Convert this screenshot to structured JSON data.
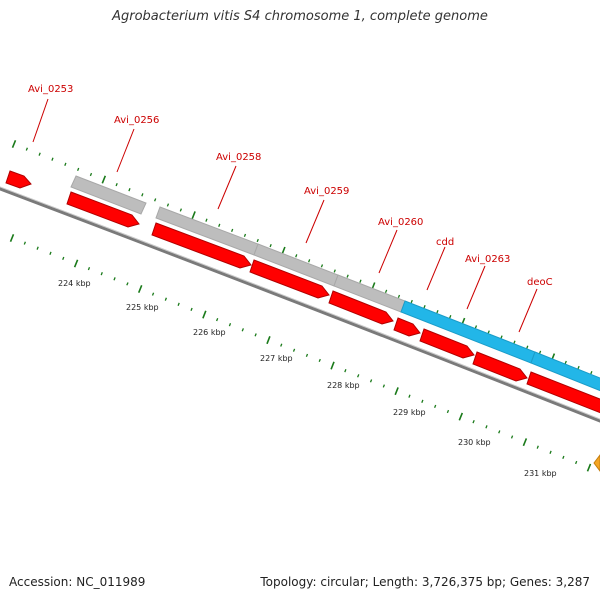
{
  "title": "Agrobacterium vitis S4 chromosome 1, complete genome",
  "footer": {
    "accession": "Accession: NC_011989",
    "summary": "Topology: circular; Length: 3,726,375 bp; Genes: 3,287"
  },
  "colors": {
    "cds": "#ff0000",
    "gene": "#bdbdbd",
    "rna": "#22b6e8",
    "other": "#f5a623",
    "label": "#cc0000",
    "ticks": "#1a7a1a",
    "backbone": "#7a7a7a"
  },
  "scale": {
    "unit": "kbp",
    "ticks": [
      {
        "value": 224,
        "label": "224 kbp"
      },
      {
        "value": 225,
        "label": "225 kbp"
      },
      {
        "value": 226,
        "label": "226 kbp"
      },
      {
        "value": 227,
        "label": "227 kbp"
      },
      {
        "value": 228,
        "label": "228 kbp"
      },
      {
        "value": 229,
        "label": "229 kbp"
      },
      {
        "value": 230,
        "label": "230 kbp"
      },
      {
        "value": 231,
        "label": "231 kbp"
      }
    ]
  },
  "genes": [
    {
      "label": "Avi_0253"
    },
    {
      "label": "Avi_0256"
    },
    {
      "label": "Avi_0258"
    },
    {
      "label": "Avi_0259"
    },
    {
      "label": "Avi_0260"
    },
    {
      "label": "cdd"
    },
    {
      "label": "Avi_0263"
    },
    {
      "label": "deoC"
    }
  ]
}
